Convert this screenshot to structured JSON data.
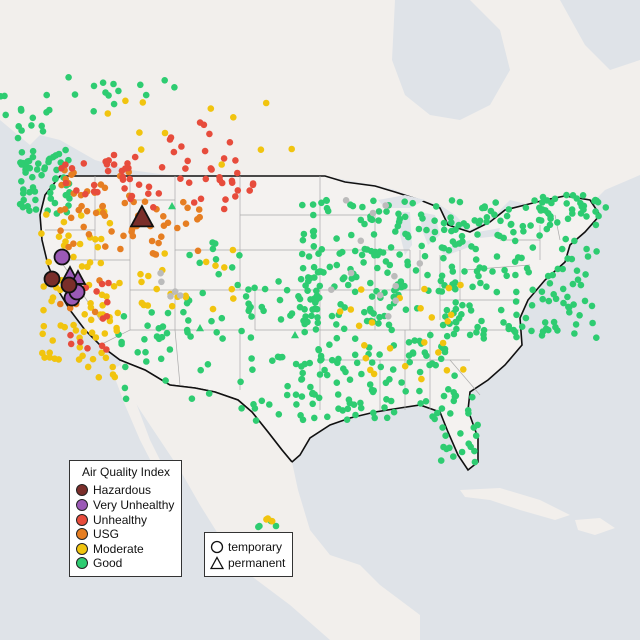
{
  "map": {
    "land_color": "#f3f1ee",
    "water_color": "#dfe3e8",
    "usa_fill": "#eeeeee"
  },
  "legend": {
    "title": "Air Quality Index",
    "categories": [
      {
        "label": "Hazardous",
        "color": "#7a2e2a"
      },
      {
        "label": "Very Unhealthy",
        "color": "#9b59b6"
      },
      {
        "label": "Unhealthy",
        "color": "#e74c3c"
      },
      {
        "label": "USG",
        "color": "#e67e22"
      },
      {
        "label": "Moderate",
        "color": "#f1c40f"
      },
      {
        "label": "Good",
        "color": "#2ecc71"
      }
    ]
  },
  "type_legend": {
    "items": [
      {
        "label": "temporary",
        "shape": "circle-icon"
      },
      {
        "label": "permanent",
        "shape": "triangle-icon"
      }
    ]
  },
  "colors": {
    "Hazardous": "#7a2e2a",
    "VeryUnhealthy": "#9b59b6",
    "Unhealthy": "#e74c3c",
    "USG": "#e67e22",
    "Moderate": "#f1c40f",
    "Good": "#2ecc71",
    "NoData": "#bbbbbb"
  }
}
